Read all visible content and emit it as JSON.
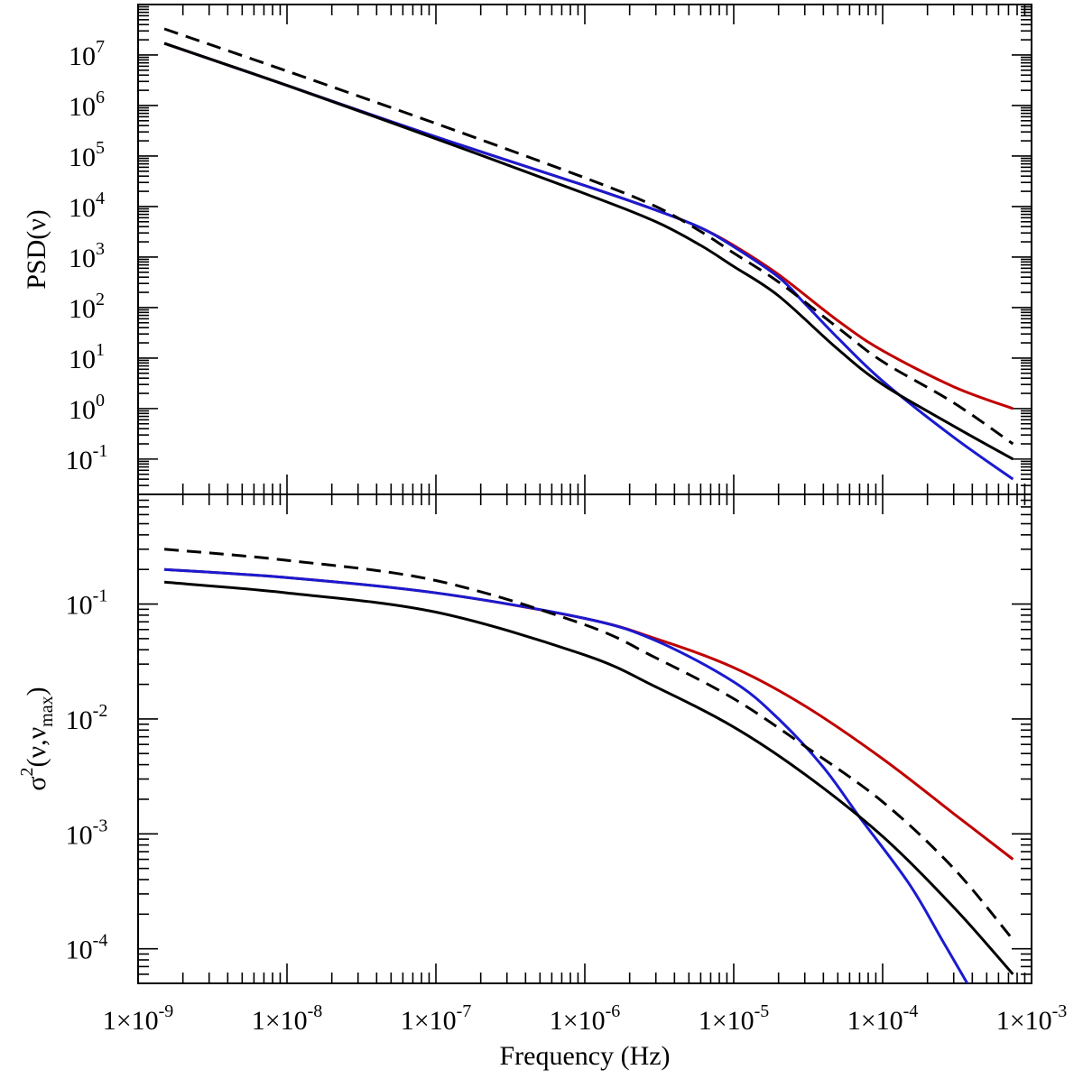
{
  "figure": {
    "xlabel": "Frequency (Hz)",
    "colors": {
      "red": "#c00000",
      "blue": "#1a1ad0",
      "black": "#000000"
    },
    "x_tick_labels": [
      {
        "v": -9,
        "t": "1×10-9"
      },
      {
        "v": -8,
        "t": "1×10-8"
      },
      {
        "v": -7,
        "t": "1×10-7"
      },
      {
        "v": -6,
        "t": "1×10-6"
      },
      {
        "v": -5,
        "t": "1×10-5"
      },
      {
        "v": -4,
        "t": "1×10-4"
      },
      {
        "v": -3,
        "t": "1×10-3"
      }
    ]
  },
  "chart_data": [
    {
      "type": "line",
      "panel": "top",
      "ylabel": "PSD(ν)",
      "xscale": "log",
      "yscale": "log",
      "xlim": [
        1e-09,
        0.001
      ],
      "ylim": [
        0.02,
        100000000.0
      ],
      "ytick_labels": [
        "10-1",
        "100",
        "101",
        "102",
        "103",
        "104",
        "105",
        "106",
        "107"
      ],
      "grid": false,
      "series": [
        {
          "color": "red",
          "style": "solid",
          "x": [
            1.5e-09,
            1e-08,
            1e-07,
            1e-06,
            3e-06,
            6e-06,
            1e-05,
            2e-05,
            5e-05,
            0.0001,
            0.0003,
            0.00075
          ],
          "y": [
            17000000.0,
            2500000.0,
            240000.0,
            26000.0,
            8500.0,
            3800.0,
            1700.0,
            450.0,
            55.0,
            14.0,
            2.7,
            1.0
          ]
        },
        {
          "color": "blue",
          "style": "solid",
          "x": [
            1.5e-09,
            1e-08,
            1e-07,
            1e-06,
            3e-06,
            6e-06,
            1e-05,
            2e-05,
            3e-05,
            5e-05,
            0.0001,
            0.0003,
            0.00075
          ],
          "y": [
            17000000.0,
            2500000.0,
            240000.0,
            26000.0,
            8500.0,
            3800.0,
            1600.0,
            400.0,
            120.0,
            25.0,
            3.5,
            0.27,
            0.04
          ]
        },
        {
          "color": "black",
          "style": "solid",
          "x": [
            1.5e-09,
            1e-08,
            1e-07,
            1e-06,
            3e-06,
            6e-06,
            1e-05,
            2e-05,
            5e-05,
            0.0001,
            0.0003,
            0.00075
          ],
          "y": [
            17000000.0,
            2500000.0,
            220000.0,
            18000.0,
            5000.0,
            1700.0,
            650.0,
            170.0,
            15.0,
            3.0,
            0.45,
            0.1
          ]
        },
        {
          "color": "black",
          "style": "dashed",
          "x": [
            1.5e-09,
            1e-08,
            1e-07,
            1e-06,
            3e-06,
            6e-06,
            1e-05,
            2e-05,
            5e-05,
            0.0001,
            0.0003,
            0.00075
          ],
          "y": [
            33000000.0,
            4800000.0,
            440000.0,
            37000.0,
            10000.0,
            3200.0,
            1200.0,
            320.0,
            40.0,
            8.5,
            1.3,
            0.2
          ]
        }
      ]
    },
    {
      "type": "line",
      "panel": "bottom",
      "ylabel": "σ2(ν,νmax)",
      "xscale": "log",
      "yscale": "log",
      "xlim": [
        1e-09,
        0.001
      ],
      "ylim": [
        5e-05,
        0.9
      ],
      "ytick_labels": [
        "10-4",
        "10-3",
        "10-2",
        "10-1"
      ],
      "grid": false,
      "series": [
        {
          "color": "red",
          "style": "solid",
          "x": [
            1.5e-09,
            1e-08,
            1e-07,
            1e-06,
            3e-06,
            1e-05,
            3e-05,
            0.0001,
            0.0003,
            0.00075
          ],
          "y": [
            0.2,
            0.17,
            0.125,
            0.075,
            0.05,
            0.028,
            0.013,
            0.0045,
            0.0015,
            0.0006
          ]
        },
        {
          "color": "blue",
          "style": "solid",
          "x": [
            1.5e-09,
            1e-08,
            1e-07,
            1e-06,
            3e-06,
            1e-05,
            2e-05,
            4e-05,
            7e-05,
            0.00015,
            0.00025,
            0.00037
          ],
          "y": [
            0.2,
            0.17,
            0.125,
            0.075,
            0.048,
            0.021,
            0.01,
            0.0038,
            0.0014,
            0.00037,
            0.00012,
            5e-05
          ]
        },
        {
          "color": "black",
          "style": "solid",
          "x": [
            1.5e-09,
            1e-08,
            1e-07,
            1e-06,
            3e-06,
            1e-05,
            3e-05,
            0.0001,
            0.0003,
            0.00075
          ],
          "y": [
            0.155,
            0.125,
            0.085,
            0.036,
            0.019,
            0.0085,
            0.0033,
            0.00095,
            0.00023,
            6e-05
          ]
        },
        {
          "color": "black",
          "style": "dashed",
          "x": [
            1.5e-09,
            1e-08,
            1e-07,
            1e-06,
            3e-06,
            1e-05,
            3e-05,
            0.0001,
            0.0003,
            0.00075
          ],
          "y": [
            0.3,
            0.24,
            0.16,
            0.066,
            0.034,
            0.015,
            0.0058,
            0.0019,
            0.0005,
            0.00012
          ]
        }
      ]
    }
  ]
}
